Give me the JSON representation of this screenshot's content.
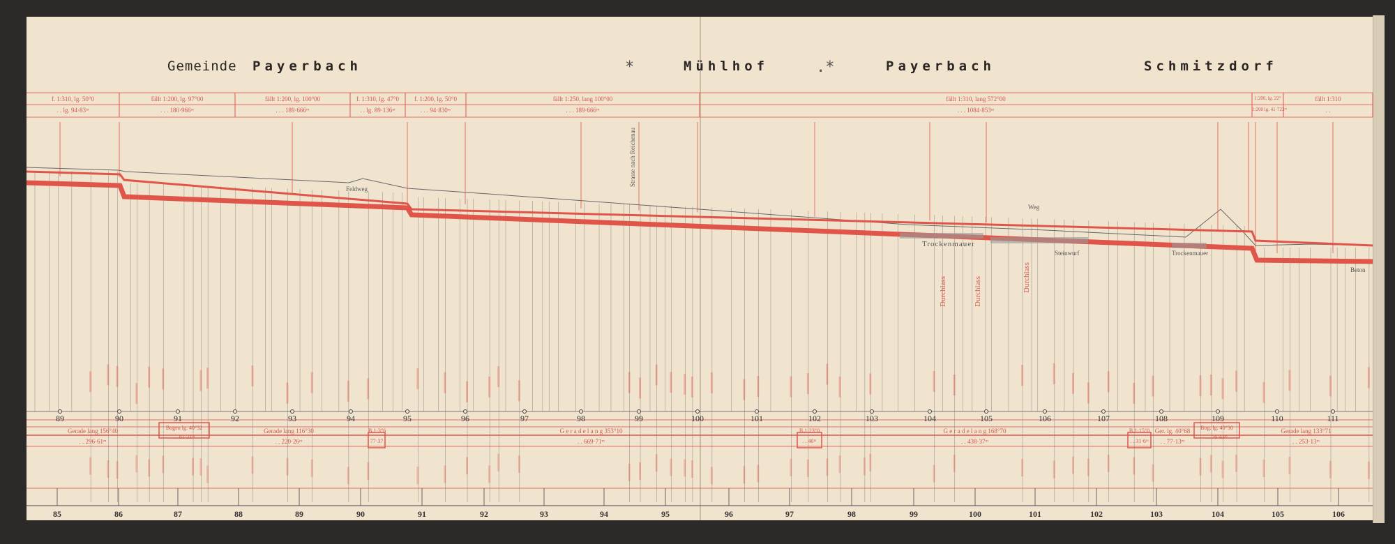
{
  "header": {
    "gemeinde_label": "Gemeinde",
    "places": [
      "Payerbach",
      "Mühlhof",
      "Payerbach",
      "Schmitzdorf"
    ],
    "markers": [
      "*",
      ".*"
    ]
  },
  "gradient_table": [
    {
      "top": "f. 1:310, lg. 50°0",
      "bottom": ". . lg. 94·83ᵐ"
    },
    {
      "top": "fällt 1:200, lg. 97°00",
      "bottom": ". . . 180·966ᵐ"
    },
    {
      "top": "fällt 1:200, lg. 100°00",
      "bottom": ". . . 189·666ᵐ"
    },
    {
      "top": "f. 1:310, lg. 47°0",
      "bottom": ". . lg. 89·136ᵐ"
    },
    {
      "top": "f. 1:200, lg. 50°0",
      "bottom": ". . . 94·830ᵐ"
    },
    {
      "top": "fällt 1:250, lang 100°00",
      "bottom": ". . . 189·666ᵐ"
    },
    {
      "top": "fällt 1:310,            lang 572°00",
      "bottom": ". .            . 1084·853ᵐ"
    },
    {
      "top": "1:200, lg. 22°",
      "bottom": "1:200 lg. 41·723ᵐ"
    },
    {
      "top": "fällt 1:310",
      "bottom": ". ."
    }
  ],
  "profile_labels": {
    "strasse": "Strasse nach Reichenau",
    "feldweg": "Feldweg",
    "weg": "Weg",
    "trockenmauer": "Trockenmauer",
    "durchlass": "Durchlass",
    "steinwurf": "Steinwurf",
    "beton": "Beton"
  },
  "station_numbers": [
    "89",
    "90",
    "91",
    "92",
    "93",
    "94",
    "95",
    "96",
    "97",
    "98",
    "99",
    "100",
    "101",
    "102",
    "103",
    "104",
    "105",
    "106",
    "107",
    "108",
    "109",
    "110",
    "111"
  ],
  "alignment_table": [
    {
      "top": "Gerade   lang   156°40",
      "bottom": ". .   296·61ᵐ"
    },
    {
      "top": "Bogen lg. 40°32",
      "bottom": ". . 81·21ᵐ"
    },
    {
      "top": "Gerade   lang   116°30",
      "bottom": ". .   220·26ᵐ"
    },
    {
      "top": "B.1·3°6",
      "bottom": "77·37"
    },
    {
      "top": "G e r a d e        l a n g        353°10",
      "bottom": ".        .        669·71ᵐ"
    },
    {
      "top": "B.1·23°0",
      "bottom": ". . 40ᵐ"
    },
    {
      "top": "G e r a d e      l a n g      168°70",
      "bottom": ".      .      438·37ᵐ"
    },
    {
      "top": "B.1·15°0",
      "bottom": ". . 31·6ᵐ"
    },
    {
      "top": "Ger. lg. 40°68",
      "bottom": ". . 77·13ᵐ"
    },
    {
      "top": "Bog. lg. 40°30",
      "bottom": ". . 76·43ᵐ"
    },
    {
      "top": "Gerade lang   133°71",
      "bottom": ". .   253·13ᵐ"
    }
  ],
  "km_numbers": [
    "85",
    "86",
    "87",
    "88",
    "89",
    "90",
    "91",
    "92",
    "93",
    "94",
    "95",
    "96",
    "97",
    "98",
    "99",
    "100",
    "101",
    "102",
    "103",
    "104",
    "105",
    "106"
  ],
  "colors": {
    "paper": "#f1e4cf",
    "ink_red": "#e0554a",
    "ink_black": "#333333",
    "background": "#2b2a28"
  }
}
